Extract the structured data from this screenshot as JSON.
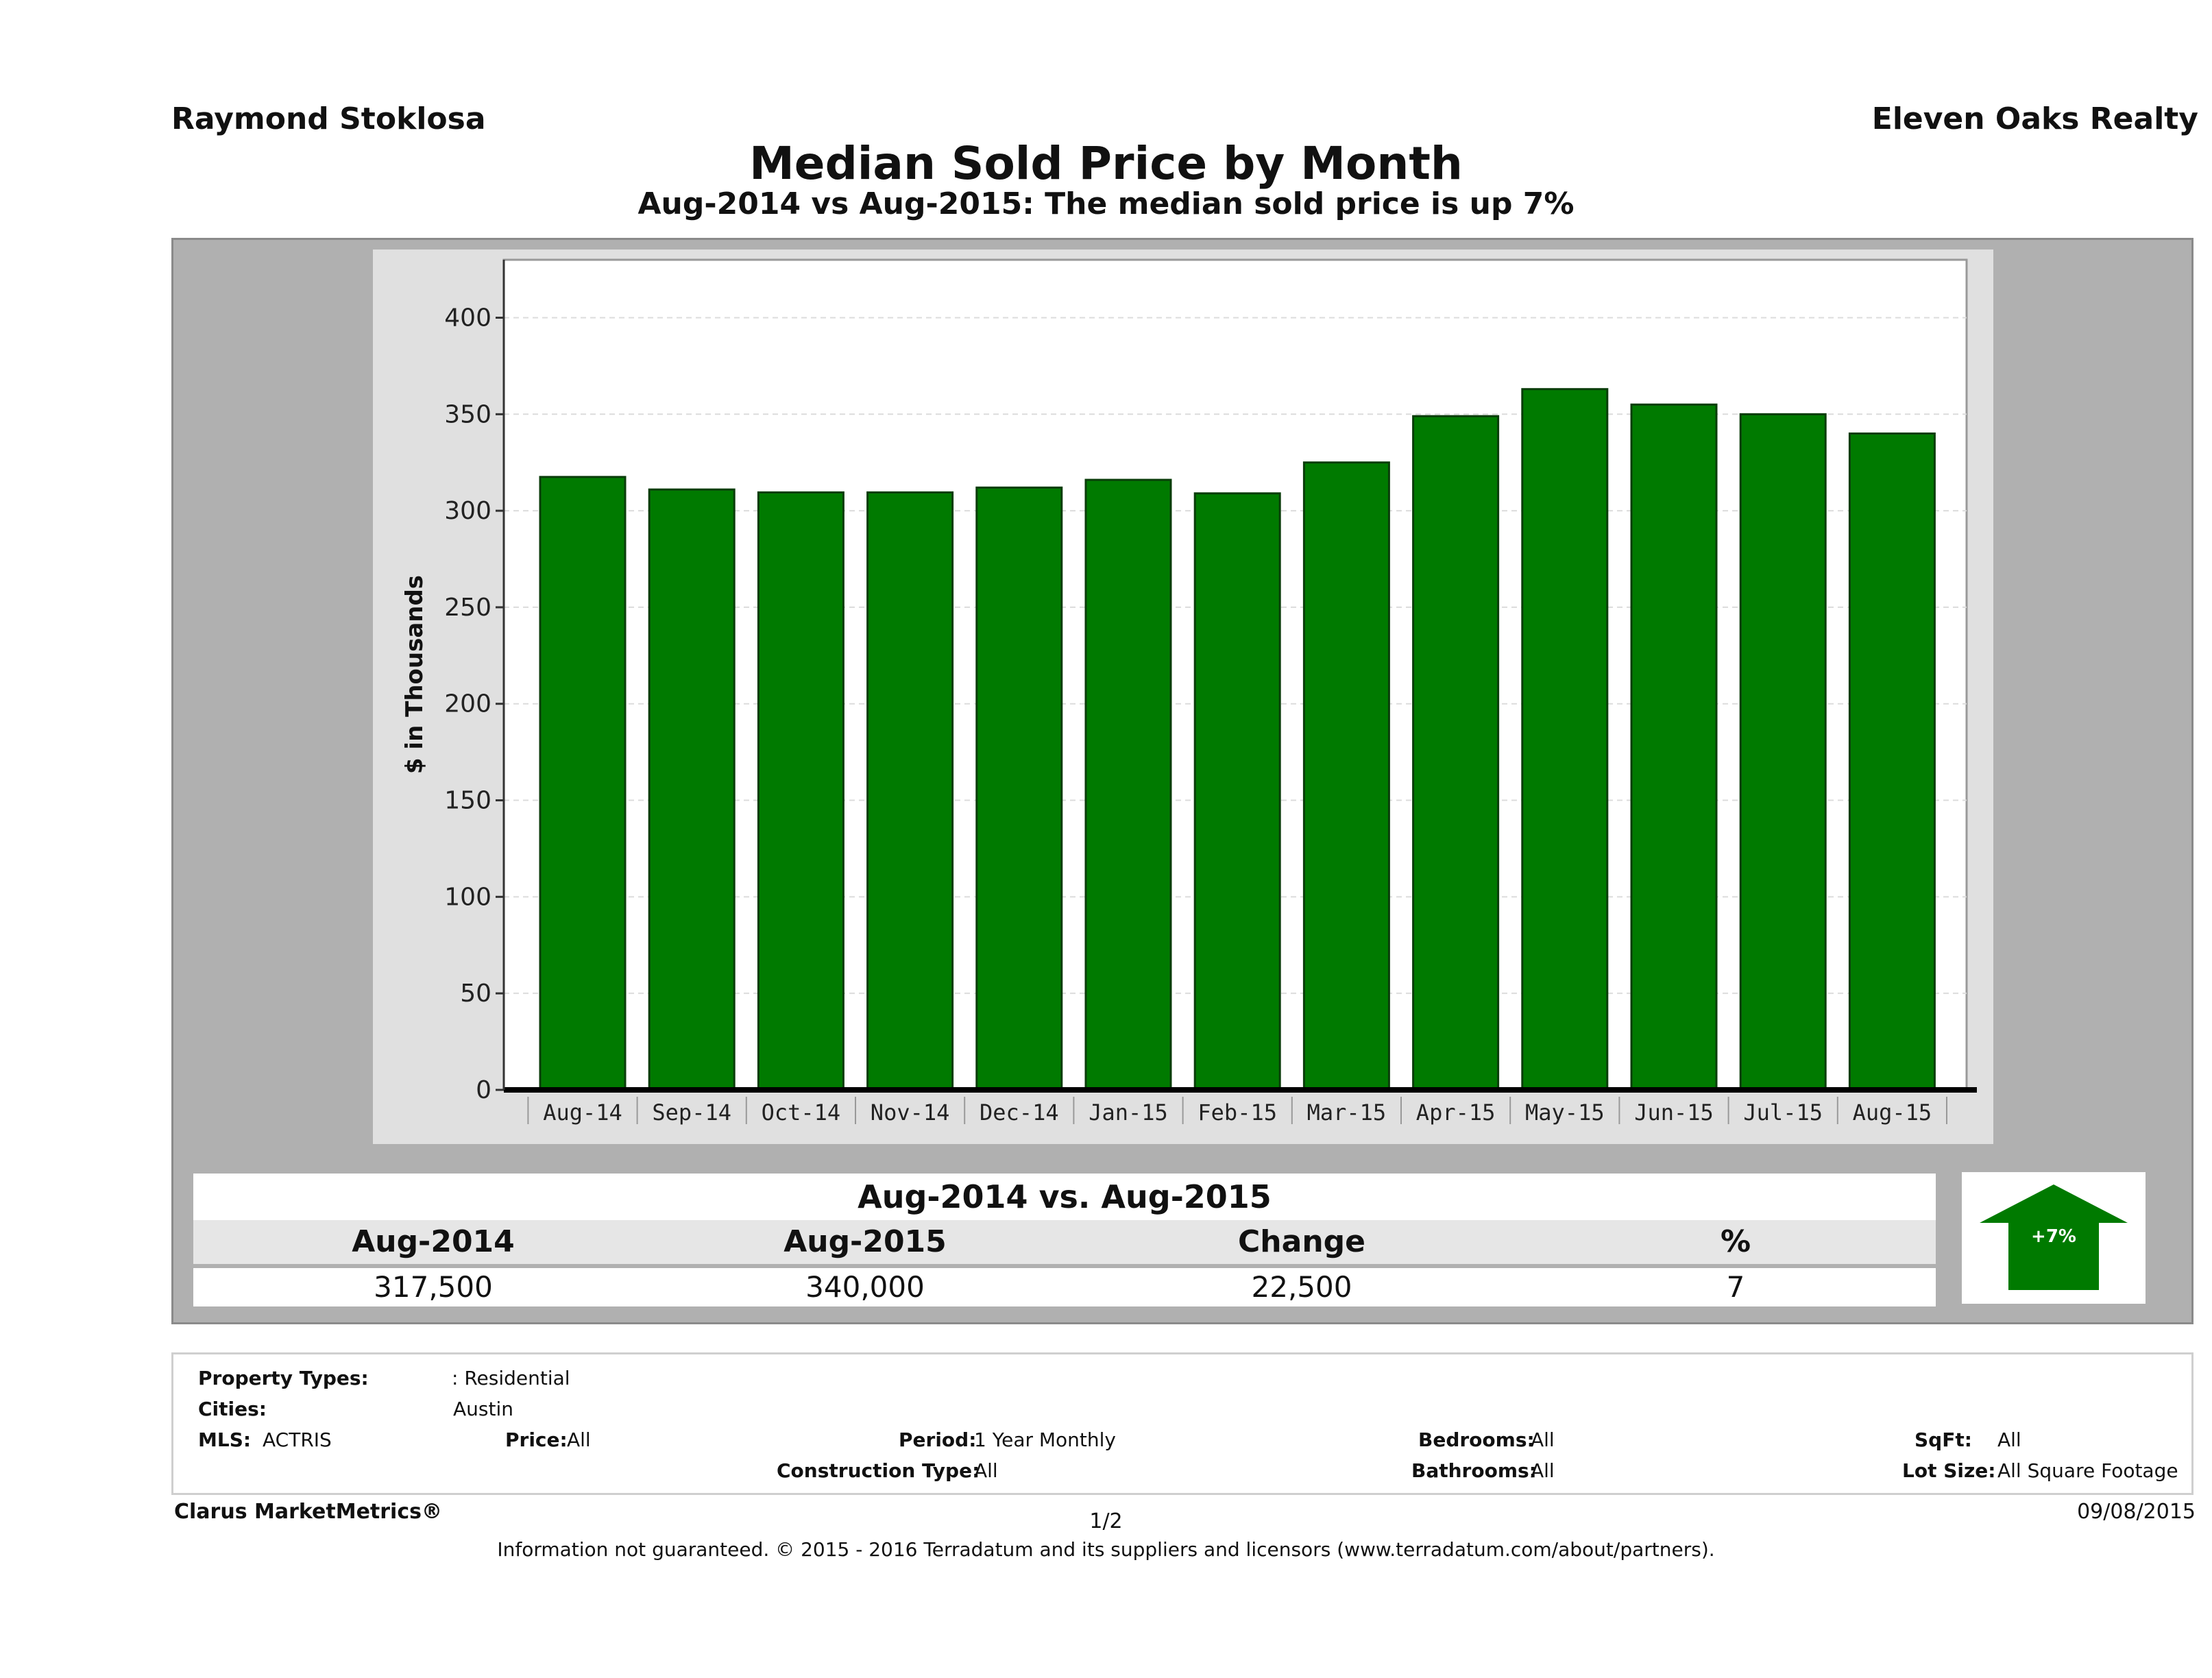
{
  "header": {
    "agent": "Raymond Stoklosa",
    "company": "Eleven Oaks Realty",
    "title": "Median Sold Price by Month",
    "subtitle": "Aug-2014 vs Aug-2015: The median sold price is up 7%"
  },
  "chart_data": {
    "type": "bar",
    "categories": [
      "Aug-14",
      "Sep-14",
      "Oct-14",
      "Nov-14",
      "Dec-14",
      "Jan-15",
      "Feb-15",
      "Mar-15",
      "Apr-15",
      "May-15",
      "Jun-15",
      "Jul-15",
      "Aug-15"
    ],
    "values": [
      317.5,
      311,
      309.5,
      309.5,
      312,
      316,
      309,
      325,
      349,
      363,
      355,
      350,
      340
    ],
    "ylabel": "$ in Thousands",
    "ylim": [
      0,
      430
    ],
    "yticks": [
      0,
      50,
      100,
      150,
      200,
      250,
      300,
      350,
      400
    ],
    "bar_color": "#007a00",
    "grid": true
  },
  "summary": {
    "header": "Aug-2014 vs. Aug-2015",
    "columns": [
      "Aug-2014",
      "Aug-2015",
      "Change",
      "%"
    ],
    "values": [
      "317,500",
      "340,000",
      "22,500",
      "7"
    ],
    "badge": "+7%",
    "badge_color": "#007a00"
  },
  "filters": {
    "property_types_label": "Property Types:",
    "property_types_value": ": Residential",
    "cities_label": "Cities:",
    "cities_value": "Austin",
    "mls_label": "MLS:",
    "mls_value": "ACTRIS",
    "price_label": "Price:",
    "price_value": "All",
    "period_label": "Period:",
    "period_value": "1 Year Monthly",
    "bedrooms_label": "Bedrooms:",
    "bedrooms_value": "All",
    "sqft_label": "SqFt:",
    "sqft_value": "All",
    "construction_label": "Construction Type:",
    "construction_value": "All",
    "bathrooms_label": "Bathrooms:",
    "bathrooms_value": "All",
    "lotsize_label": "Lot Size:",
    "lotsize_value": "All Square Footage"
  },
  "footer": {
    "brand": "Clarus MarketMetrics®",
    "page": "1/2",
    "date": "09/08/2015",
    "disclaimer": "Information not guaranteed. © 2015 - 2016 Terradatum and its suppliers and licensors (www.terradatum.com/about/partners)."
  }
}
